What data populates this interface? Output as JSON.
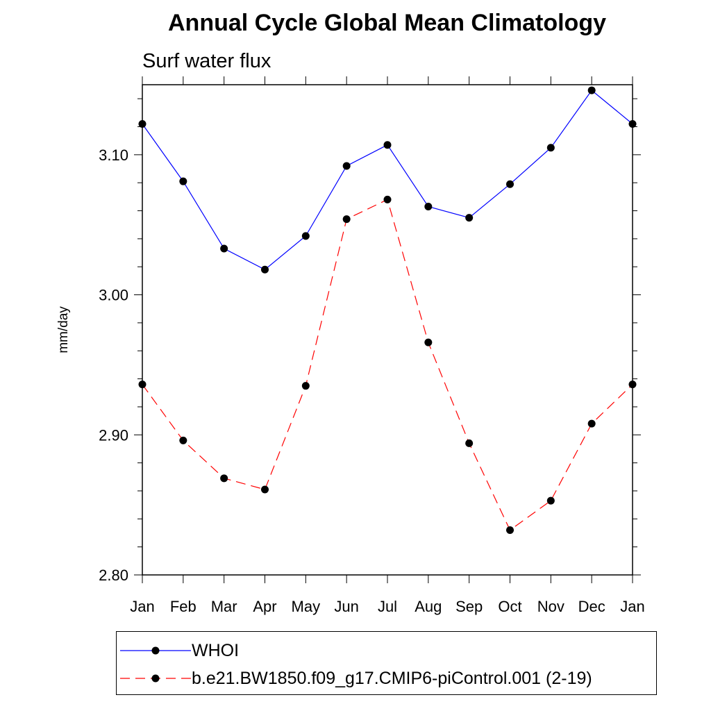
{
  "chart_data": {
    "type": "line",
    "title": "Annual Cycle Global Mean Climatology",
    "subtitle": "Surf water flux",
    "xlabel": "",
    "ylabel": "mm/day",
    "categories": [
      "Jan",
      "Feb",
      "Mar",
      "Apr",
      "May",
      "Jun",
      "Jul",
      "Aug",
      "Sep",
      "Oct",
      "Nov",
      "Dec",
      "Jan"
    ],
    "ylim": [
      2.8,
      3.15
    ],
    "yticks": [
      2.8,
      2.9,
      3.0,
      3.1
    ],
    "ytick_labels": [
      "2.80",
      "2.90",
      "3.00",
      "3.10"
    ],
    "series": [
      {
        "name": "WHOI",
        "color": "#0000ff",
        "dash": "solid",
        "values": [
          3.122,
          3.081,
          3.033,
          3.018,
          3.042,
          3.092,
          3.107,
          3.063,
          3.055,
          3.079,
          3.105,
          3.146,
          3.122
        ]
      },
      {
        "name": "b.e21.BW1850.f09_g17.CMIP6-piControl.001 (2-19)",
        "color": "#ff0000",
        "dash": "dashed",
        "values": [
          2.936,
          2.896,
          2.869,
          2.861,
          2.935,
          3.054,
          3.068,
          2.966,
          2.894,
          2.832,
          2.853,
          2.908,
          2.936
        ]
      }
    ],
    "legend_position": "bottom"
  }
}
